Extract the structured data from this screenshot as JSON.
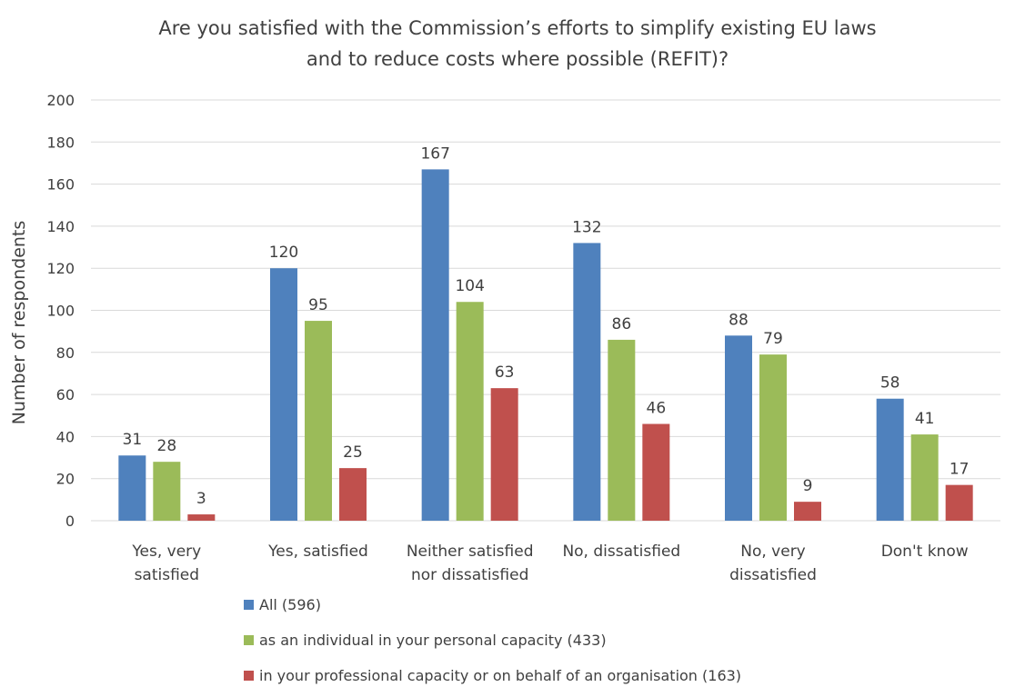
{
  "chart_data": {
    "type": "bar",
    "title": "Are you satisfied with the Commission’s efforts to simplify existing EU laws and to reduce costs where possible (REFIT)?",
    "title_lines": [
      "Are you satisfied with the Commission’s efforts to simplify existing EU laws",
      "and to reduce costs where possible (REFIT)?"
    ],
    "xlabel": "",
    "ylabel": "Number of respondents",
    "ylim": [
      0,
      200
    ],
    "yticks": [
      0,
      20,
      40,
      60,
      80,
      100,
      120,
      140,
      160,
      180,
      200
    ],
    "grid": true,
    "legend_position": "bottom",
    "categories": [
      [
        "Yes, very",
        "satisfied"
      ],
      [
        "Yes, satisfied"
      ],
      [
        "Neither satisfied",
        "nor dissatisfied"
      ],
      [
        "No, dissatisfied"
      ],
      [
        "No, very",
        "dissatisfied"
      ],
      [
        "Don't know"
      ]
    ],
    "series": [
      {
        "name": "All  (596)",
        "color": "#4f81bd",
        "values": [
          31,
          120,
          167,
          132,
          88,
          58
        ]
      },
      {
        "name": "as an individual in your personal capacity  (433)",
        "color": "#9bbb59",
        "values": [
          28,
          95,
          104,
          86,
          79,
          41
        ]
      },
      {
        "name": "in your professional capacity or on behalf of an organisation  (163)",
        "color": "#c0504d",
        "values": [
          3,
          25,
          63,
          46,
          9,
          17
        ]
      }
    ]
  }
}
